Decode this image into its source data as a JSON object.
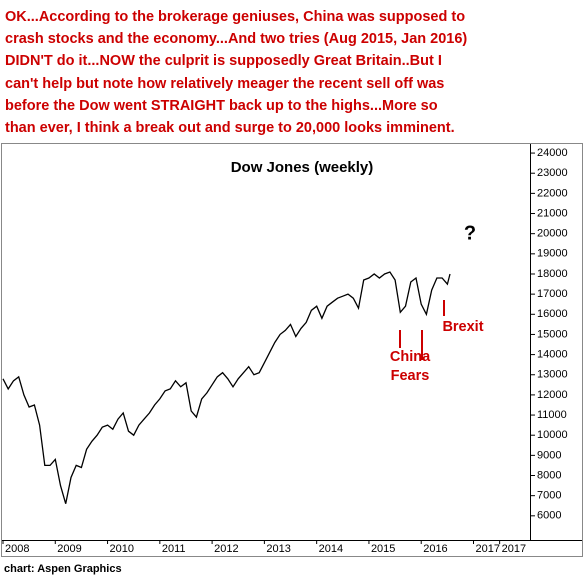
{
  "chart_data": {
    "type": "line",
    "annotation_lines": [
      "OK...According to the brokerage geniuses, China was supposed to",
      "crash stocks and the economy...And two tries (Aug 2015, Jan 2016)",
      "DIDN'T do it...NOW the culprit is supposedly Great Britain..But I",
      "can't help but note how relatively meager the recent sell off was",
      "before the Dow went STRAIGHT back up to the highs...More so",
      "than ever, I think a break out and surge to 20,000 looks imminent."
    ],
    "title": "Dow Jones (weekly)",
    "labels": [
      "?",
      "Brexit",
      "China",
      "Fears"
    ],
    "source": "chart: Aspen Graphics",
    "color": "#000000",
    "x": [
      2008.0,
      2008.1,
      2008.2,
      2008.3,
      2008.4,
      2008.5,
      2008.6,
      2008.7,
      2008.8,
      2008.9,
      2009.0,
      2009.1,
      2009.2,
      2009.3,
      2009.4,
      2009.5,
      2009.6,
      2009.7,
      2009.8,
      2009.9,
      2010.0,
      2010.1,
      2010.2,
      2010.3,
      2010.4,
      2010.5,
      2010.6,
      2010.7,
      2010.8,
      2010.9,
      2011.0,
      2011.1,
      2011.2,
      2011.3,
      2011.4,
      2011.5,
      2011.6,
      2011.7,
      2011.8,
      2011.9,
      2012.0,
      2012.1,
      2012.2,
      2012.3,
      2012.4,
      2012.5,
      2012.6,
      2012.7,
      2012.8,
      2012.9,
      2013.0,
      2013.1,
      2013.2,
      2013.3,
      2013.4,
      2013.5,
      2013.6,
      2013.7,
      2013.8,
      2013.9,
      2014.0,
      2014.1,
      2014.2,
      2014.3,
      2014.4,
      2014.5,
      2014.6,
      2014.7,
      2014.8,
      2014.9,
      2015.0,
      2015.1,
      2015.2,
      2015.3,
      2015.4,
      2015.5,
      2015.6,
      2015.7,
      2015.8,
      2015.9,
      2016.0,
      2016.1,
      2016.2,
      2016.3,
      2016.4,
      2016.5,
      2016.55
    ],
    "values": [
      12800,
      12300,
      12700,
      12900,
      12000,
      11400,
      11500,
      10500,
      8500,
      8500,
      8800,
      7500,
      6600,
      7900,
      8500,
      8400,
      9300,
      9700,
      10000,
      10400,
      10500,
      10300,
      10800,
      11100,
      10200,
      10000,
      10500,
      10800,
      11100,
      11500,
      11800,
      12200,
      12300,
      12700,
      12400,
      12600,
      11200,
      10900,
      11800,
      12100,
      12500,
      12900,
      13100,
      12800,
      12400,
      12800,
      13100,
      13400,
      13000,
      13100,
      13600,
      14100,
      14600,
      15000,
      15200,
      15500,
      14900,
      15300,
      15600,
      16200,
      16400,
      15800,
      16400,
      16600,
      16800,
      16900,
      17000,
      16800,
      16300,
      17700,
      17800,
      18000,
      17800,
      18000,
      18100,
      17700,
      16100,
      16400,
      17600,
      17800,
      16500,
      16000,
      17200,
      17800,
      17800,
      17500,
      18000
    ],
    "xlim": [
      2008,
      2018.1
    ],
    "xticks": [
      2008,
      2009,
      2010,
      2011,
      2012,
      2013,
      2014,
      2015,
      2016,
      2017,
      {
        "value": 2017.5,
        "label": "2017"
      }
    ],
    "ylim": [
      4800,
      24450
    ],
    "yticks": [
      6000,
      7000,
      8000,
      9000,
      10000,
      11000,
      12000,
      13000,
      14000,
      15000,
      16000,
      17000,
      18000,
      19000,
      20000,
      21000,
      22000,
      23000,
      24000
    ]
  }
}
